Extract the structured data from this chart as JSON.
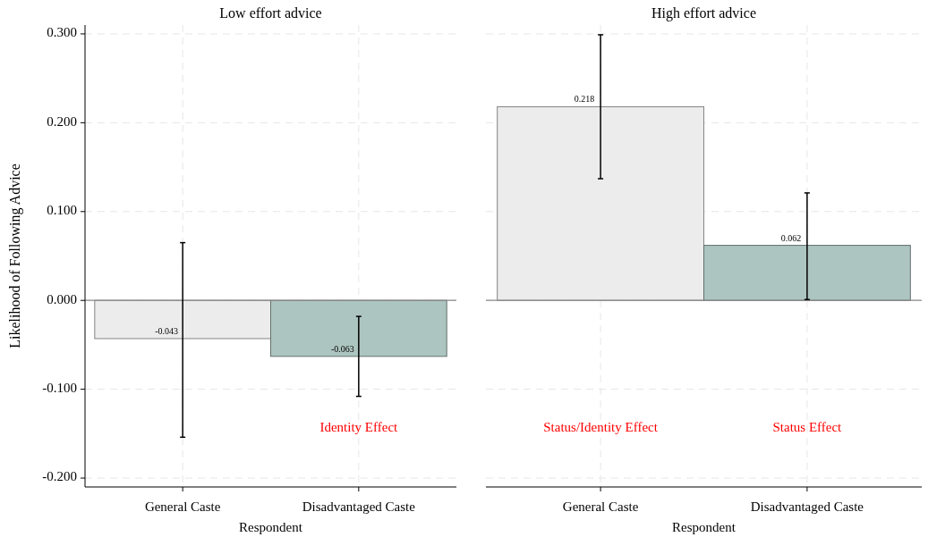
{
  "chart_data": [
    {
      "type": "bar",
      "title": "Low effort advice",
      "xlabel": "Respondent",
      "ylabel": "Likelihood of Following Advice",
      "categories": [
        "General Caste",
        "Disadvantaged Caste"
      ],
      "values": [
        -0.043,
        -0.063
      ],
      "colors": [
        "#ececec",
        "#adc5c0"
      ],
      "errors": [
        [
          -0.154,
          0.065
        ],
        [
          -0.108,
          -0.018
        ]
      ],
      "ylim": [
        -0.21,
        0.31
      ],
      "yticks": [
        {
          "value": -0.2,
          "label": "-0.200"
        },
        {
          "value": -0.1,
          "label": "-0.100"
        },
        {
          "value": 0,
          "label": "0.000"
        },
        {
          "value": 0.1,
          "label": "0.100"
        },
        {
          "value": 0.2,
          "label": "0.200"
        },
        {
          "value": 0.3,
          "label": "0.300"
        }
      ],
      "grid": true,
      "data_labels": true,
      "annotations": [
        "Identity Effect"
      ]
    },
    {
      "type": "bar",
      "title": "High effort advice",
      "xlabel": "Respondent",
      "categories": [
        "General Caste",
        "Disadvantaged Caste"
      ],
      "values": [
        0.218,
        0.062
      ],
      "colors": [
        "#ececec",
        "#adc5c0"
      ],
      "errors": [
        [
          0.137,
          0.299
        ],
        [
          0.001,
          0.121
        ]
      ],
      "ylim": [
        -0.21,
        0.31
      ],
      "yticks": [
        {
          "value": -0.2,
          "label": null
        },
        {
          "value": -0.1,
          "label": null
        },
        {
          "value": 0,
          "label": null
        },
        {
          "value": 0.1,
          "label": null
        },
        {
          "value": 0.2,
          "label": null
        },
        {
          "value": 0.3,
          "label": null
        }
      ],
      "tick_labels": "x",
      "grid": true,
      "data_labels": true,
      "annotations": [
        "Status/Identity Effect",
        "Status Effect"
      ]
    }
  ]
}
